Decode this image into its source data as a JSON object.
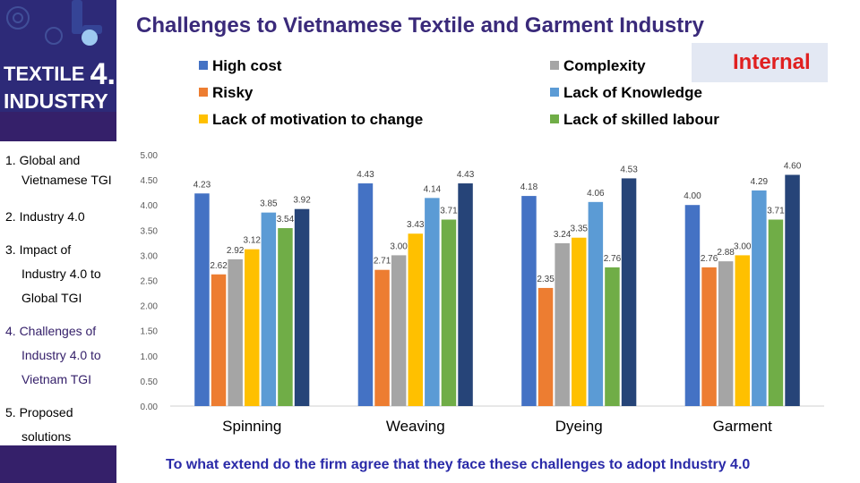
{
  "title": "Challenges to Vietnamese Textile and Garment Industry",
  "badge": "Internal",
  "logo": {
    "line1": "TEXTILE",
    "number": "4.",
    "line2": "INDUSTRY"
  },
  "nav": [
    {
      "label": "1. Global and",
      "indent": false
    },
    {
      "label": "Vietnamese TGI",
      "indent": true
    },
    {
      "label": "2. Industry 4.0",
      "indent": false
    },
    {
      "label": "3. Impact of",
      "indent": false
    },
    {
      "label": "Industry 4.0 to",
      "indent": true
    },
    {
      "label": "Global TGI",
      "indent": true
    },
    {
      "label": "4. Challenges of",
      "indent": false
    },
    {
      "label": "Industry 4.0 to",
      "indent": true
    },
    {
      "label": "Vietnam TGI",
      "indent": true
    },
    {
      "label": "5. Proposed",
      "indent": false
    },
    {
      "label": "solutions",
      "indent": true
    }
  ],
  "subtitle": "To what extend do the firm agree that they face these challenges to adopt Industry 4.0",
  "colors": {
    "High cost": "#4472c4",
    "Risky": "#ed7d31",
    "Complexity": "#a5a5a5",
    "Lack of motivation to change": "#ffc000",
    "Lack of Knowledge": "#5b9bd5",
    "Lack of skilled labour": "#70ad47",
    "extra": "#264478"
  },
  "chart_data": {
    "type": "bar",
    "categories": [
      "Spinning",
      "Weaving",
      "Dyeing",
      "Garment"
    ],
    "series": [
      {
        "name": "High cost",
        "color": "#4472c4",
        "values": [
          4.23,
          4.43,
          4.18,
          4.0
        ]
      },
      {
        "name": "Risky",
        "color": "#ed7d31",
        "values": [
          2.62,
          2.71,
          2.35,
          2.76
        ]
      },
      {
        "name": "Complexity",
        "color": "#a5a5a5",
        "values": [
          2.92,
          3.0,
          3.24,
          2.88
        ]
      },
      {
        "name": "Lack of motivation to change",
        "color": "#ffc000",
        "values": [
          3.12,
          3.43,
          3.35,
          3.0
        ]
      },
      {
        "name": "Lack of Knowledge",
        "color": "#5b9bd5",
        "values": [
          3.85,
          4.14,
          4.06,
          4.29
        ]
      },
      {
        "name": "Lack of skilled labour",
        "color": "#70ad47",
        "values": [
          3.54,
          3.71,
          2.76,
          3.71
        ]
      },
      {
        "color": "#264478",
        "values": [
          3.92,
          4.43,
          4.53,
          4.6
        ]
      }
    ],
    "legend": [
      "High cost",
      "Complexity",
      "Risky",
      "Lack of Knowledge",
      "Lack of motivation to change",
      "Lack of skilled labour"
    ],
    "y_ticks": [
      "0.00",
      "0.50",
      "1.00",
      "1.50",
      "2.00",
      "2.50",
      "3.00",
      "3.50",
      "4.00",
      "4.50",
      "5.00"
    ],
    "ylim": [
      0,
      5
    ],
    "grid": false,
    "legend_position": "top"
  }
}
